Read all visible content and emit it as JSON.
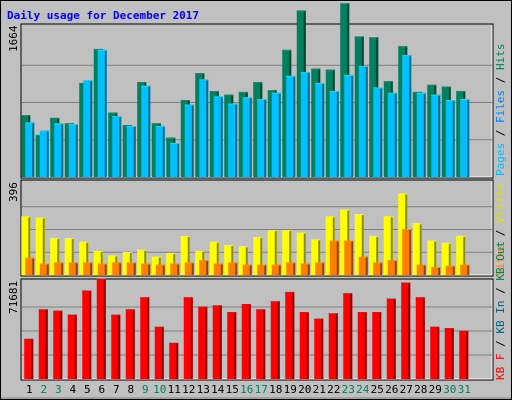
{
  "chart_data": {
    "type": "bar",
    "title": "Daily usage for December 2017",
    "days": [
      "1",
      "2",
      "3",
      "4",
      "5",
      "6",
      "7",
      "8",
      "9",
      "10",
      "11",
      "12",
      "13",
      "14",
      "15",
      "16",
      "17",
      "18",
      "19",
      "20",
      "21",
      "22",
      "23",
      "24",
      "25",
      "26",
      "27",
      "28",
      "29",
      "30",
      "31"
    ],
    "weekend_days": [
      2,
      3,
      9,
      10,
      16,
      17,
      23,
      24,
      30,
      31
    ],
    "panels": [
      {
        "id": "top",
        "max_label": "1664",
        "max": 1664,
        "legend": [
          "Pages",
          "Files",
          "Hits"
        ],
        "legend_colors": [
          "#00c0ff",
          "#0080ff",
          "#00805f"
        ],
        "series": [
          {
            "name": "Hits",
            "color": "#00805f",
            "values": [
              690,
              470,
              660,
              600,
              1050,
              1430,
              720,
              580,
              1060,
              600,
              440,
              860,
              1160,
              960,
              920,
              950,
              1060,
              970,
              1420,
              1860,
              1210,
              1200,
              1940,
              1570,
              1560,
              1070,
              1460,
              950,
              1030,
              1010,
              960
            ]
          },
          {
            "name": "Pages",
            "color": "#00c0ff",
            "values": [
              610,
              520,
              600,
              590,
              1080,
              1420,
              680,
              570,
              1020,
              570,
              380,
              810,
              1090,
              900,
              820,
              890,
              870,
              940,
              1130,
              1170,
              1050,
              960,
              1140,
              1240,
              1000,
              940,
              1360,
              940,
              920,
              860,
              870
            ]
          }
        ]
      },
      {
        "id": "mid",
        "max_label": "396",
        "max": 396,
        "legend": [
          "Visits",
          "Sites"
        ],
        "legend_colors": [
          "#ffff00",
          "#ff8000"
        ],
        "series": [
          {
            "name": "Visits",
            "color": "#ffff00",
            "values": [
              255,
              250,
              160,
              160,
              145,
              105,
              85,
              100,
              110,
              80,
              95,
              170,
              105,
              145,
              130,
              125,
              165,
              195,
              195,
              185,
              155,
              255,
              285,
              265,
              170,
              255,
              355,
              225,
              150,
              140,
              170
            ]
          },
          {
            "name": "Sites",
            "color": "#ff8000",
            "values": [
              75,
              50,
              55,
              55,
              55,
              50,
              55,
              55,
              50,
              45,
              50,
              55,
              65,
              50,
              55,
              45,
              45,
              45,
              55,
              50,
              55,
              150,
              150,
              80,
              55,
              65,
              200,
              45,
              35,
              40,
              45
            ]
          }
        ]
      },
      {
        "id": "bot",
        "max_label": "71681",
        "max": 71681,
        "legend": [
          "KB F",
          "KB In",
          "KB Out"
        ],
        "legend_colors": [
          "#ff0000",
          "#006080",
          "#00805f"
        ],
        "series": [
          {
            "name": "KB F",
            "color": "#ff0000",
            "values": [
              30000,
              52000,
              51000,
              48000,
              66000,
              75000,
              48000,
              52000,
              61000,
              39000,
              27000,
              61000,
              54000,
              55000,
              50000,
              56000,
              52000,
              58000,
              65000,
              50000,
              45000,
              49000,
              64000,
              50000,
              50000,
              60000,
              72000,
              61000,
              39000,
              38000,
              36000
            ]
          }
        ]
      }
    ]
  }
}
